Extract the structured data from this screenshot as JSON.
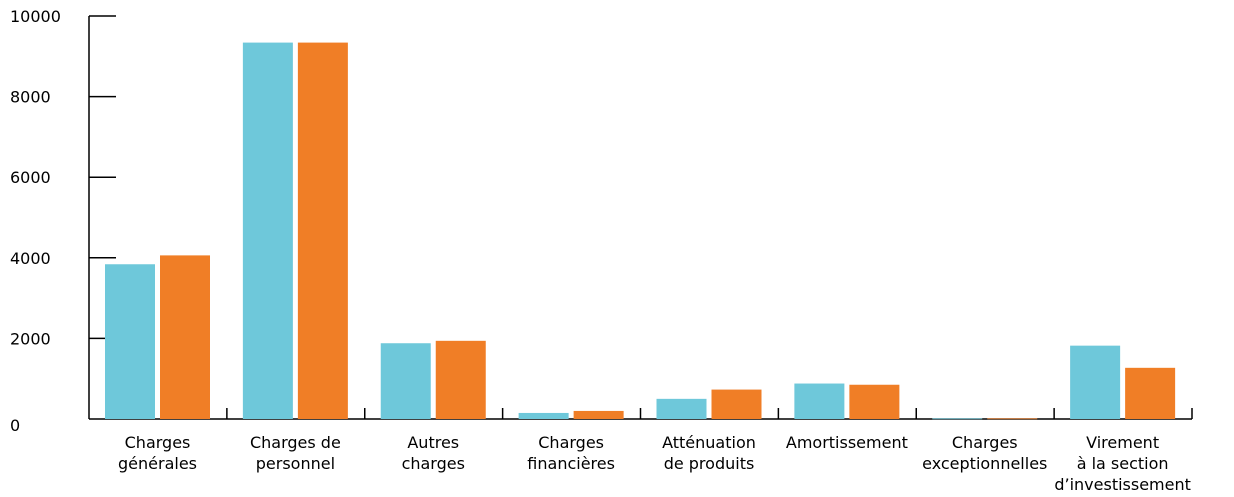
{
  "chart_data": {
    "type": "bar",
    "categories": [
      [
        "Charges",
        "générales"
      ],
      [
        "Charges de",
        "personnel"
      ],
      [
        "Autres",
        "charges"
      ],
      [
        "Charges",
        "financières"
      ],
      [
        "Atténuation",
        "de produits"
      ],
      [
        "Amortissement"
      ],
      [
        "Charges",
        "exceptionnelles"
      ],
      [
        "Virement",
        "à la section",
        "d’investissement"
      ]
    ],
    "series": [
      {
        "color": "#6EC8DA",
        "values": [
          3840,
          9340,
          1880,
          150,
          500,
          880,
          15,
          1820
        ]
      },
      {
        "color": "#F07E26",
        "values": [
          4060,
          9340,
          1940,
          200,
          730,
          850,
          15,
          1270
        ]
      }
    ],
    "ylim": [
      0,
      10000
    ],
    "yticks": [
      "0",
      "2000",
      "4000",
      "6000",
      "8000",
      "10000"
    ],
    "grid": false,
    "legend": "none"
  }
}
